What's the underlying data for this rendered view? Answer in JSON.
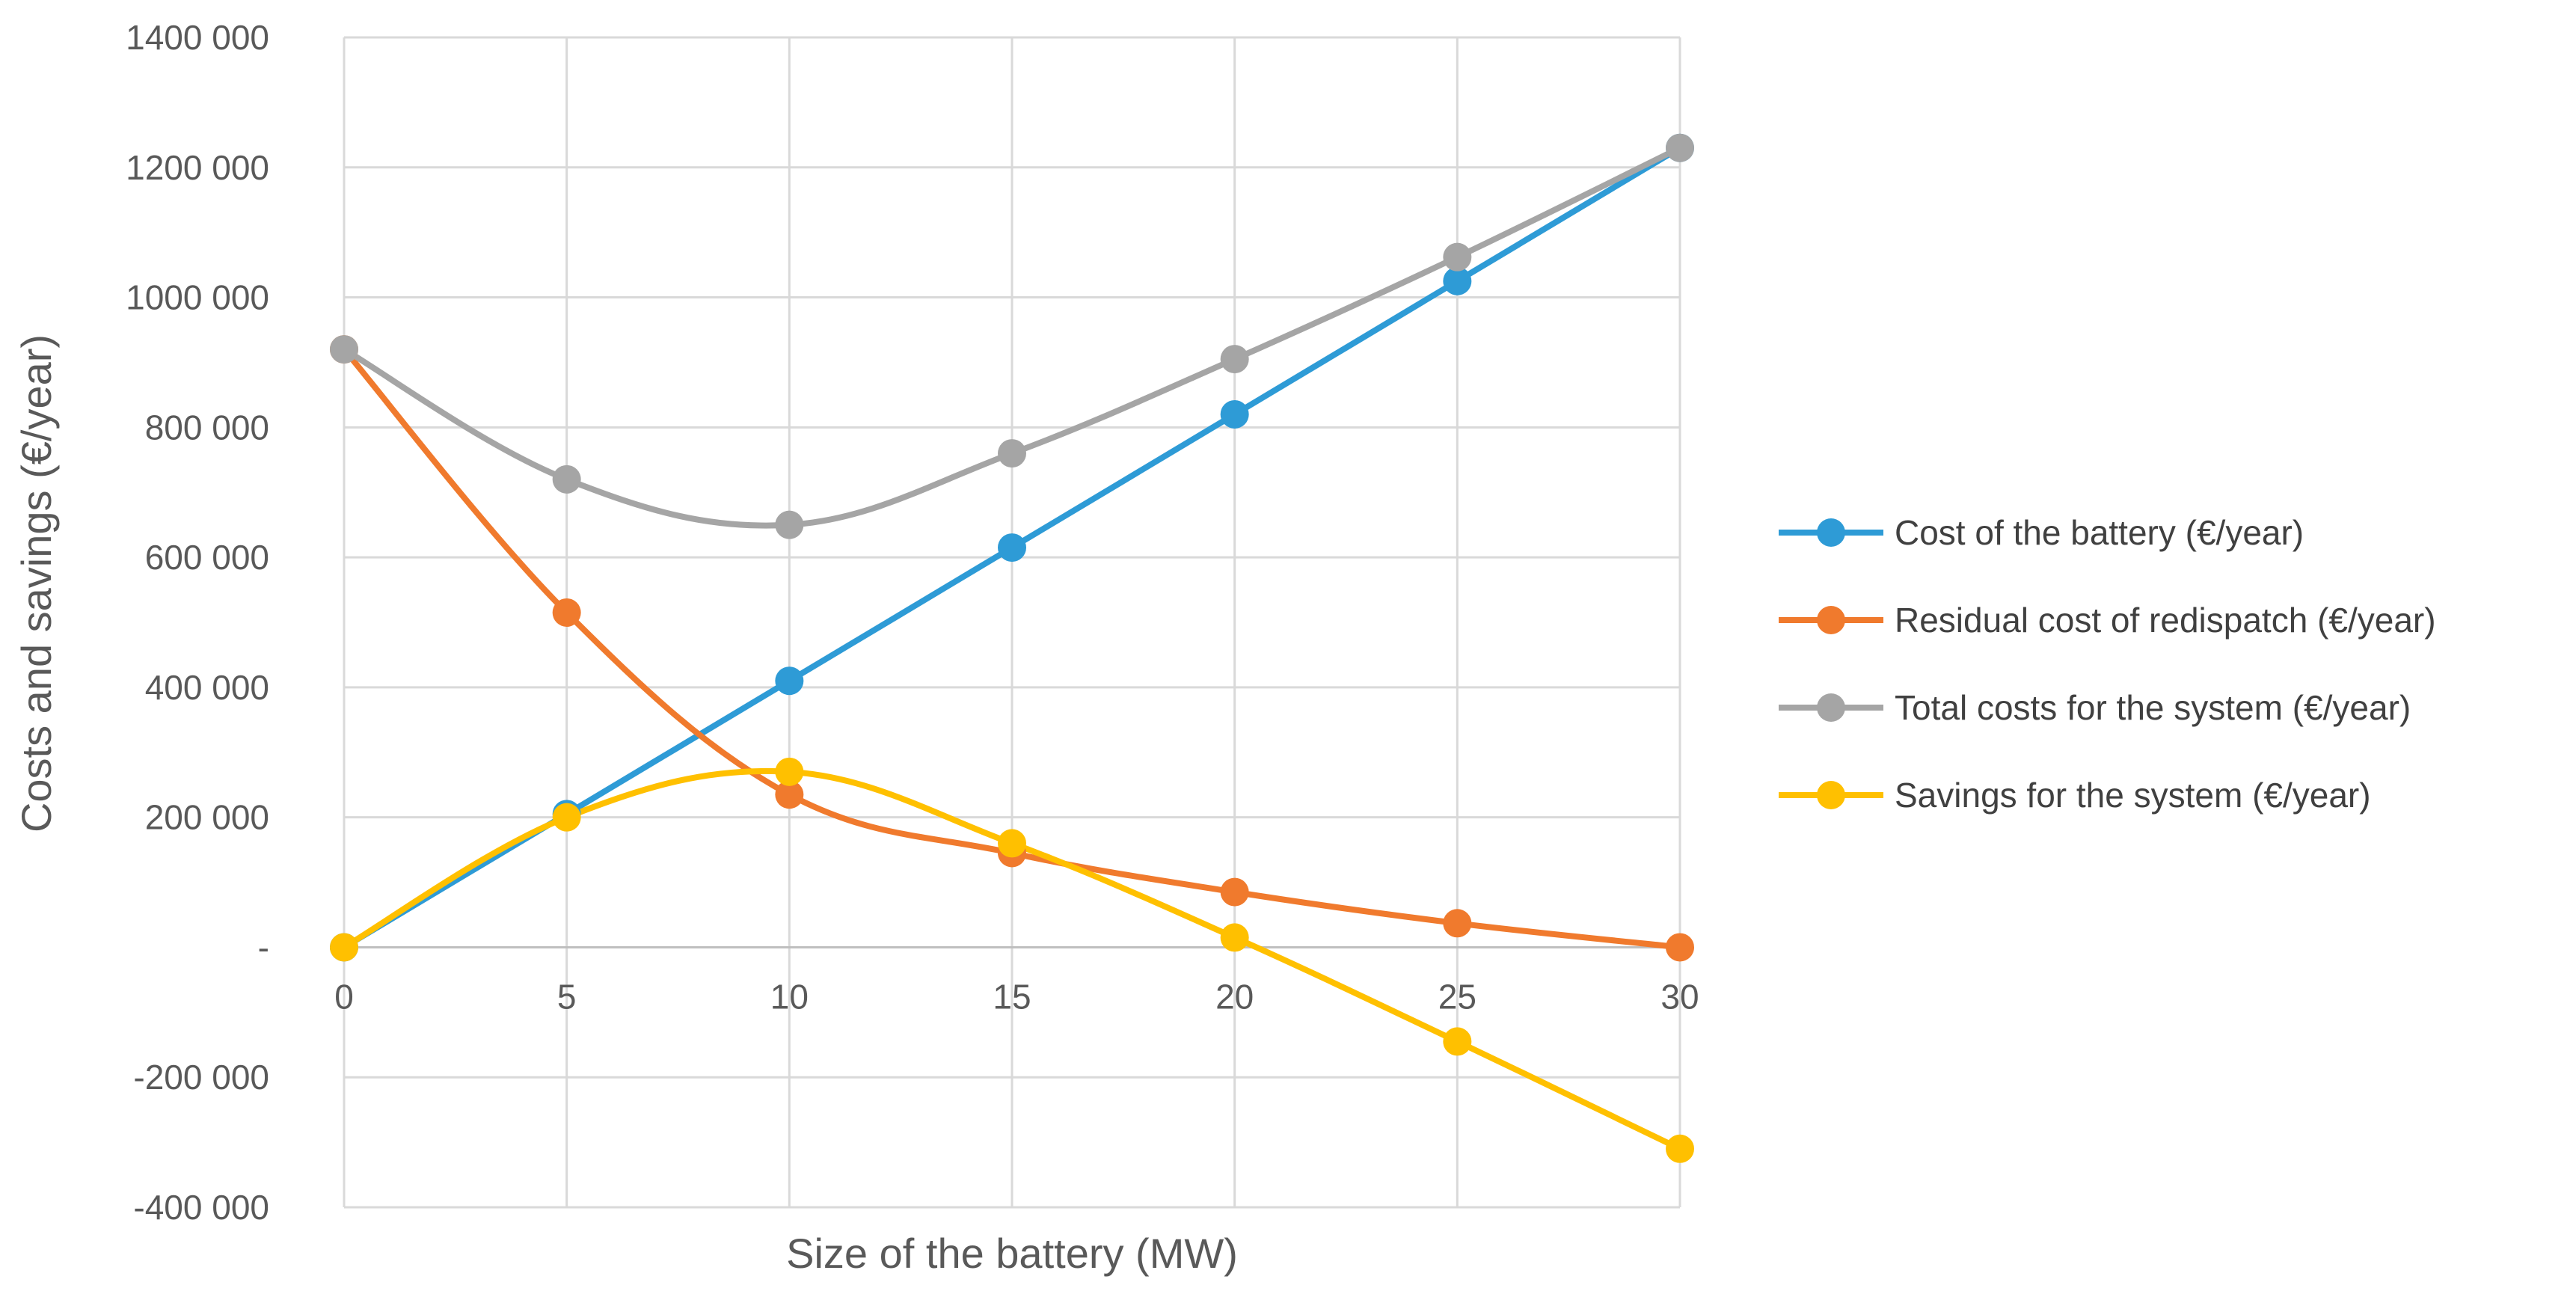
{
  "chart_data": {
    "type": "line",
    "title": "",
    "xlabel": "Size of the battery (MW)",
    "ylabel": "Costs and savings (€/year)",
    "x": [
      0,
      5,
      10,
      15,
      20,
      25,
      30
    ],
    "x_tick_labels": [
      "0",
      "5",
      "10",
      "15",
      "20",
      "25",
      "30"
    ],
    "xlim": [
      0,
      30
    ],
    "ylim": [
      -400000,
      1400000
    ],
    "y_ticks": [
      -400000,
      -200000,
      0,
      200000,
      400000,
      600000,
      800000,
      1000000,
      1200000,
      1400000
    ],
    "y_tick_labels": [
      "-400 000",
      "-200 000",
      "-",
      "200 000",
      "400 000",
      "600 000",
      "800 000",
      "1000 000",
      "1200 000",
      "1400 000"
    ],
    "grid": true,
    "smooth": true,
    "legend_position": "right",
    "series": [
      {
        "name": "Cost of the battery (€/year)",
        "color": "#2E9BD6",
        "values": [
          0,
          205000,
          410000,
          615000,
          820000,
          1025000,
          1230000
        ]
      },
      {
        "name": "Residual cost of redispatch (€/year)",
        "color": "#F07A2D",
        "values": [
          920000,
          515000,
          235000,
          145000,
          85000,
          37000,
          0
        ]
      },
      {
        "name": "Total costs for the system (€/year)",
        "color": "#A5A5A5",
        "values": [
          920000,
          720000,
          650000,
          760000,
          905000,
          1062000,
          1230000
        ]
      },
      {
        "name": "Savings for the system (€/year)",
        "color": "#FFC000",
        "values": [
          0,
          200000,
          270000,
          160000,
          15000,
          -145000,
          -310000
        ]
      }
    ]
  }
}
